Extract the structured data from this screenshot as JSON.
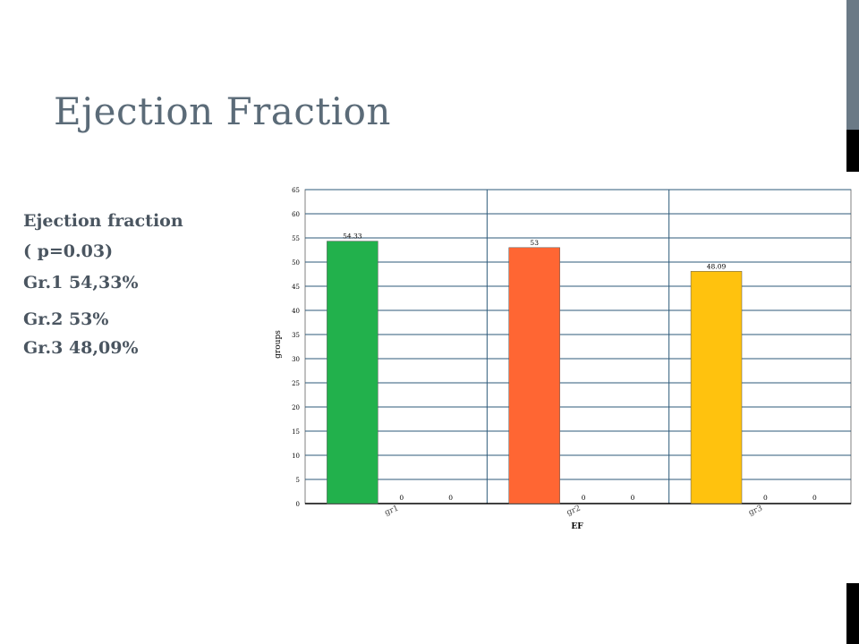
{
  "slide": {
    "title": "Ejection Fraction",
    "stats_lines": [
      "Ejection fraction",
      "( p=0.03)",
      "Gr.1 54,33%",
      "Gr.2 53%",
      "Gr.3 48,09%"
    ]
  },
  "chart_data": {
    "type": "bar",
    "xlabel": "EF",
    "ylabel": "groups",
    "ylim": [
      0,
      65
    ],
    "yticks": [
      0,
      5,
      10,
      15,
      20,
      25,
      30,
      35,
      40,
      45,
      50,
      55,
      60,
      65
    ],
    "grid": true,
    "categories": [
      "gr1",
      "gr2",
      "gr3"
    ],
    "series": [
      {
        "values": [
          54.33,
          53,
          48.09
        ],
        "labels": [
          "54.33",
          "53",
          "48.09"
        ],
        "colors": [
          "#22b14c",
          "#ff6633",
          "#ffc20e"
        ]
      },
      {
        "values": [
          0,
          0,
          0
        ],
        "labels": [
          "0",
          "0",
          "0"
        ]
      },
      {
        "values": [
          0,
          0,
          0
        ],
        "labels": [
          "0",
          "0",
          "0"
        ]
      }
    ]
  }
}
